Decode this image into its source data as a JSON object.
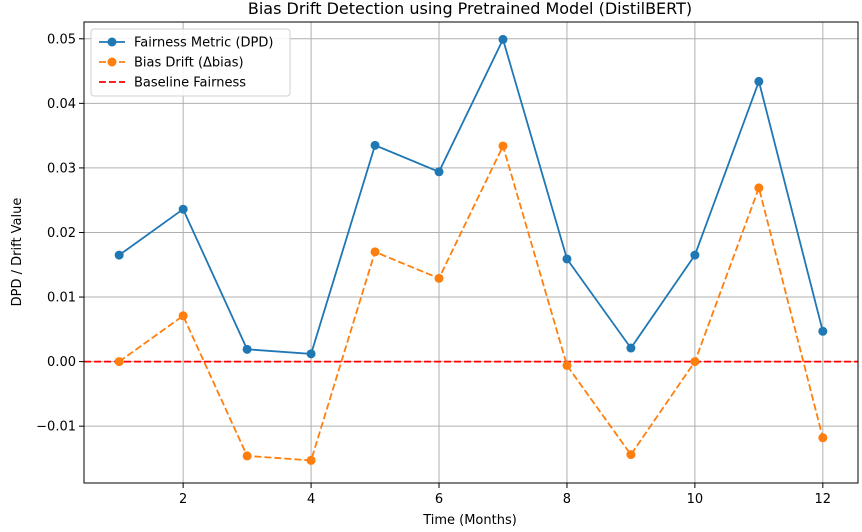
{
  "chart_data": {
    "type": "line",
    "title": "Bias Drift Detection using Pretrained Model (DistilBERT)",
    "xlabel": "Time (Months)",
    "ylabel": "DPD / Drift Value",
    "xlim": [
      0.45,
      12.55
    ],
    "ylim": [
      -0.0188,
      0.0526
    ],
    "x_ticks": [
      2,
      4,
      6,
      8,
      10,
      12
    ],
    "x_tick_labels": [
      "2",
      "4",
      "6",
      "8",
      "10",
      "12"
    ],
    "y_ticks": [
      -0.01,
      0.0,
      0.01,
      0.02,
      0.03,
      0.04,
      0.05
    ],
    "y_tick_labels": [
      "−0.01",
      "0.00",
      "0.01",
      "0.02",
      "0.03",
      "0.04",
      "0.05"
    ],
    "grid": true,
    "legend_position": "top-left",
    "x": [
      1,
      2,
      3,
      4,
      5,
      6,
      7,
      8,
      9,
      10,
      11,
      12
    ],
    "series": [
      {
        "name": "Fairness Metric (DPD)",
        "color": "#1f77b4",
        "style": "solid",
        "marker": "circle",
        "values": [
          0.0165,
          0.0236,
          0.0019,
          0.0012,
          0.0335,
          0.0294,
          0.0499,
          0.0159,
          0.0021,
          0.0165,
          0.0434,
          0.0047
        ]
      },
      {
        "name": "Bias Drift (Δbias)",
        "color": "#ff7f0e",
        "style": "dashed",
        "marker": "circle",
        "values": [
          0.0,
          0.0071,
          -0.0146,
          -0.0153,
          0.017,
          0.0129,
          0.0334,
          -0.0006,
          -0.0144,
          0.0,
          0.0269,
          -0.0118
        ]
      }
    ],
    "baseline": {
      "name": "Baseline Fairness",
      "value": 0.0,
      "color": "#ff0000",
      "style": "dashed"
    }
  }
}
